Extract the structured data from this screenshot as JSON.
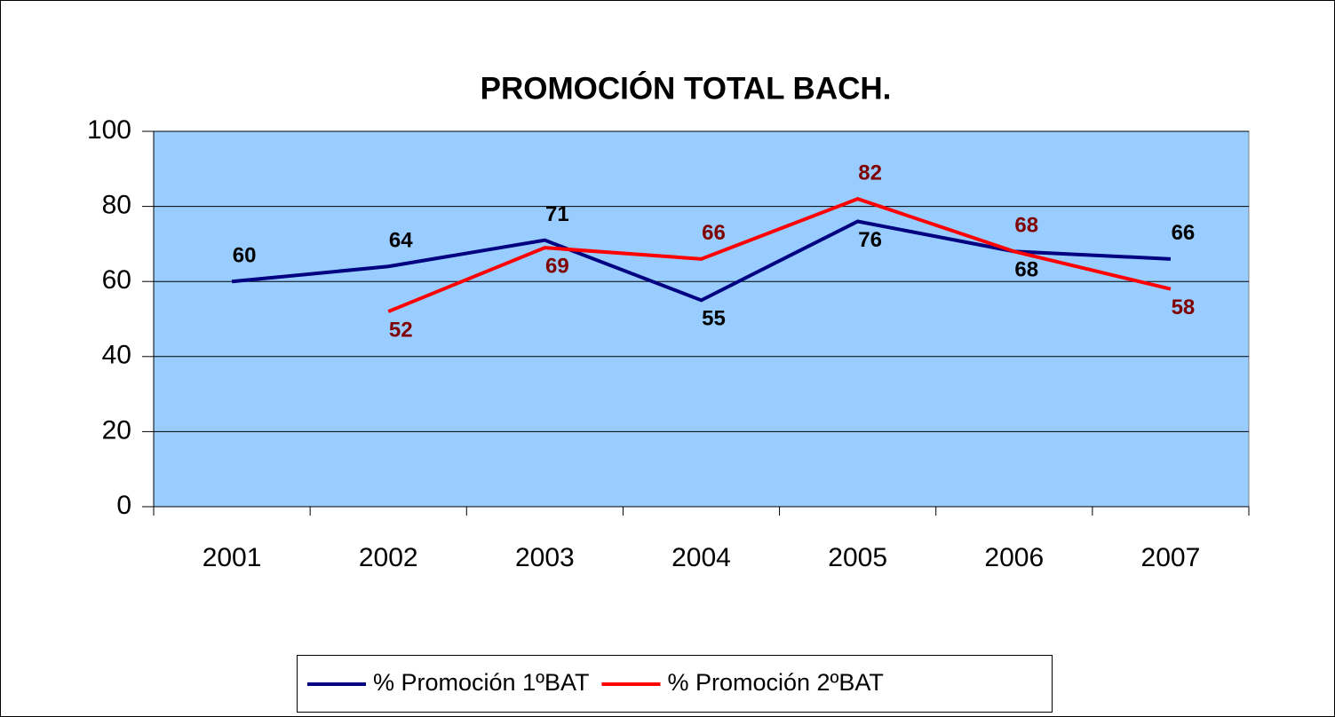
{
  "chart_data": {
    "type": "line",
    "title": "PROMOCIÓN TOTAL BACH.",
    "categories": [
      "2001",
      "2002",
      "2003",
      "2004",
      "2005",
      "2006",
      "2007"
    ],
    "series": [
      {
        "name": "% Promoción 1ºBAT",
        "color": "#000080",
        "label_color": "#000000",
        "values": [
          60,
          64,
          71,
          55,
          76,
          68,
          66
        ]
      },
      {
        "name": "% Promoción 2ºBAT",
        "color": "#ff0000",
        "label_color": "#800000",
        "values": [
          null,
          52,
          69,
          66,
          82,
          68,
          58
        ]
      }
    ],
    "ylim": [
      0,
      100
    ],
    "yticks": [
      0,
      20,
      40,
      60,
      80,
      100
    ],
    "grid": true,
    "plot_background": "#99ccff",
    "legend": "bottom"
  }
}
